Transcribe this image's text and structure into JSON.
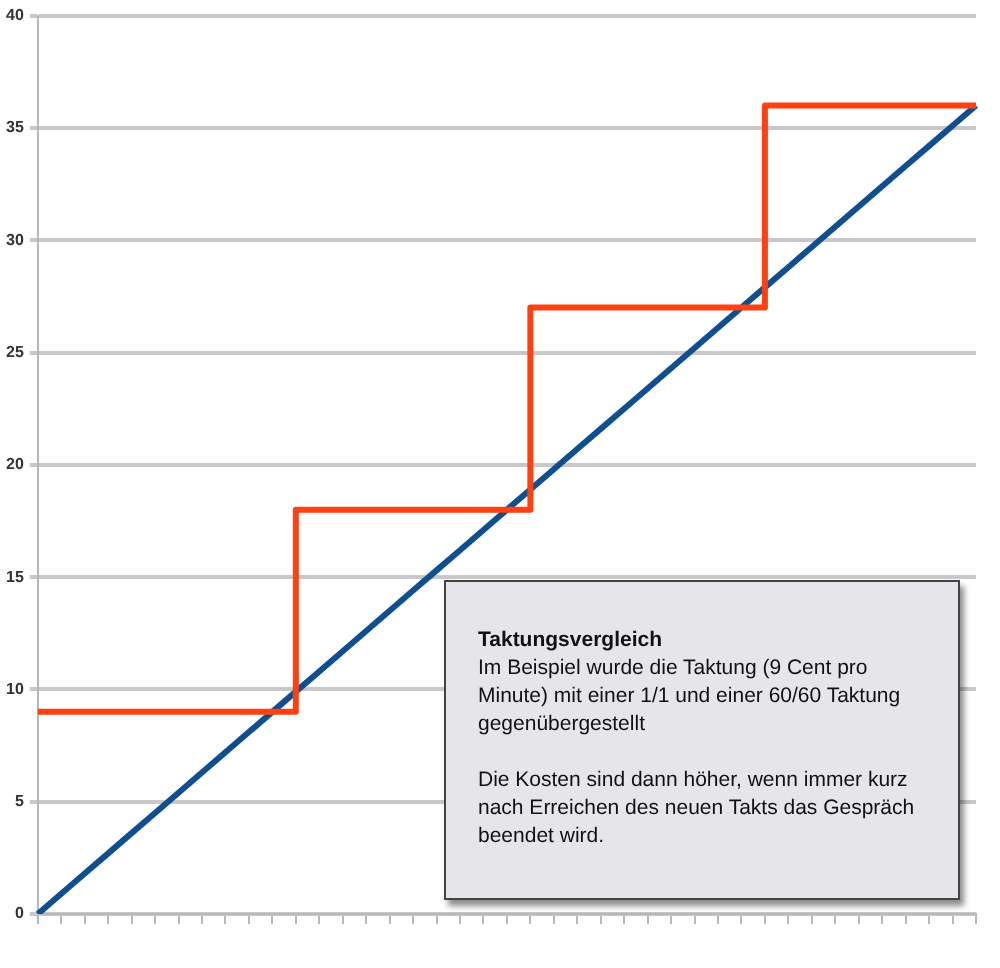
{
  "chart_data": {
    "type": "line",
    "categories": [
      null,
      null,
      null,
      null,
      null,
      null,
      null,
      null,
      null,
      null,
      null,
      null,
      null,
      null,
      null,
      null,
      null,
      null,
      null,
      null,
      null,
      null,
      null,
      null,
      null,
      null,
      null,
      null,
      null,
      null,
      null,
      null,
      null,
      null,
      null,
      null,
      null,
      null,
      null,
      null,
      null
    ],
    "series": [
      {
        "type": "step",
        "color": "#ff4010",
        "values": [
          9,
          9,
          9,
          9,
          9,
          9,
          9,
          9,
          9,
          9,
          9,
          18,
          18,
          18,
          18,
          18,
          18,
          18,
          18,
          18,
          18,
          27,
          27,
          27,
          27,
          27,
          27,
          27,
          27,
          27,
          27,
          36,
          36,
          36,
          36,
          36,
          36,
          36,
          36,
          36,
          36
        ]
      },
      {
        "type": "line",
        "color": "#0f4f8f",
        "values": [
          0,
          0.9,
          1.8,
          2.7,
          3.6,
          4.5,
          5.4,
          6.3,
          7.2,
          8.1,
          9,
          9.9,
          10.8,
          11.7,
          12.6,
          13.5,
          14.4,
          15.3,
          16.2,
          17.1,
          18,
          18.9,
          19.8,
          20.7,
          21.6,
          22.5,
          23.4,
          24.3,
          25.2,
          26.1,
          27,
          27.9,
          28.8,
          29.7,
          30.6,
          31.5,
          32.4,
          33.3,
          34.2,
          35.1,
          36
        ]
      }
    ],
    "ylim": [
      0,
      40
    ],
    "yticks": [
      0,
      5,
      10,
      15,
      20,
      25,
      30,
      35,
      40
    ],
    "grid": "y",
    "tick_labels": "y",
    "legend": false,
    "marker": "none",
    "annotations": [
      "Taktungsvergleich",
      "Im Beispiel wurde die Taktung (9 Cent pro Minute) mit einer 1/1 und einer 60/60 Taktung gegenübergestellt",
      "Die Kosten sind dann höher, wenn immer kurz nach Erreichen des neuen Takts das Gespräch beendet wird."
    ]
  }
}
